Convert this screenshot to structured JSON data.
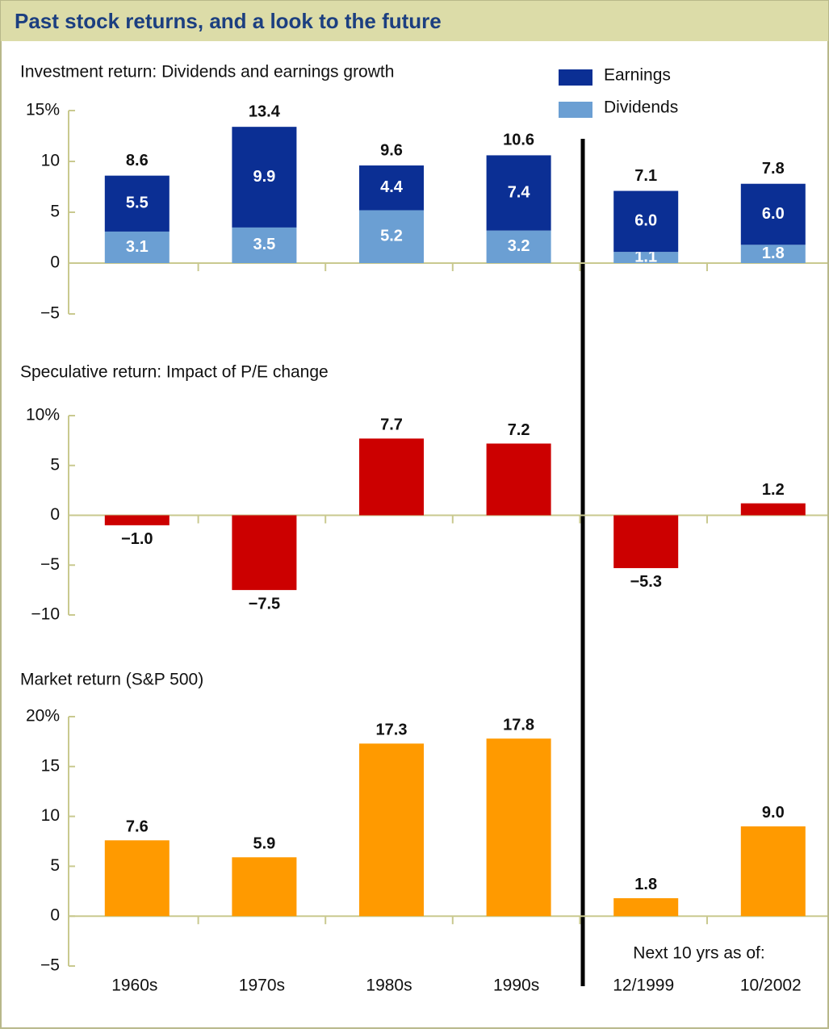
{
  "title": "Past stock returns, and a look to the future",
  "chart_data": [
    {
      "type": "stacked_bar",
      "title": "Investment return: Dividends and earnings growth",
      "ylim": [
        -5,
        15
      ],
      "yticks": [
        {
          "value": 15,
          "label": "15%"
        },
        10,
        5,
        0,
        {
          "value": -5,
          "label": "−5"
        }
      ],
      "series": [
        {
          "name": "Earnings",
          "color": "#0b2f94",
          "values": [
            5.5,
            9.9,
            4.4,
            7.4,
            6.0,
            6.0
          ],
          "value_labels": [
            "5.5",
            "9.9",
            "4.4",
            "7.4",
            "6.0",
            "6.0"
          ]
        },
        {
          "name": "Dividends",
          "color": "#6b9fd3",
          "values": [
            3.1,
            3.5,
            5.2,
            3.2,
            1.1,
            1.8
          ],
          "value_labels": [
            "3.1",
            "3.5",
            "5.2",
            "3.2",
            "1.1",
            "1.8"
          ]
        }
      ],
      "totals": [
        8.6,
        13.4,
        9.6,
        10.6,
        7.1,
        7.8
      ]
    },
    {
      "type": "bar",
      "title": "Speculative return: Impact of P/E change",
      "ylim": [
        -10,
        10
      ],
      "yticks": [
        {
          "value": 10,
          "label": "10%"
        },
        5,
        0,
        {
          "value": -5,
          "label": "−5"
        },
        {
          "value": -10,
          "label": "−10"
        }
      ],
      "color": "#cc0000",
      "values": [
        -1.0,
        -7.5,
        7.7,
        7.2,
        -5.3,
        1.2
      ],
      "value_labels": [
        "−1.0",
        "−7.5",
        "7.7",
        "7.2",
        "−5.3",
        "1.2"
      ]
    },
    {
      "type": "bar",
      "title": "Market return (S&P 500)",
      "ylim": [
        -5,
        20
      ],
      "yticks": [
        {
          "value": 20,
          "label": "20%"
        },
        15,
        10,
        5,
        0,
        {
          "value": -5,
          "label": "−5"
        }
      ],
      "color": "#ff9a00",
      "values": [
        7.6,
        5.9,
        17.3,
        17.8,
        1.8,
        9.0
      ],
      "value_labels": [
        "7.6",
        "5.9",
        "17.3",
        "17.8",
        "1.8",
        "9.0"
      ],
      "categories": [
        "1960s",
        "1970s",
        "1980s",
        "1990s",
        "12/1999",
        "10/2002"
      ],
      "annotation": "Next 10 yrs as of:"
    }
  ]
}
